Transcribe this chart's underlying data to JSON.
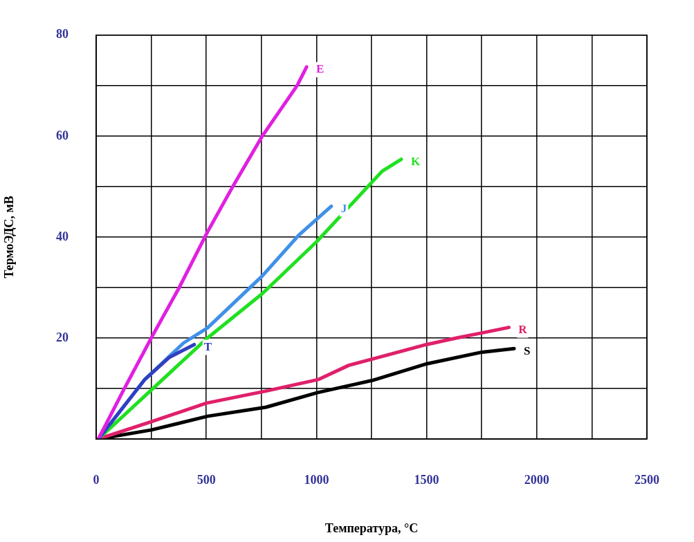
{
  "chart_data": {
    "type": "line",
    "xlabel": "Температура, °C",
    "ylabel": "ТермоЭДС, мВ",
    "xlim": [
      0,
      2500
    ],
    "ylim": [
      0,
      80
    ],
    "xticks": [
      0,
      {
        "value": 250,
        "label": null
      },
      500,
      {
        "value": 750,
        "label": null
      },
      1000,
      {
        "value": 1250,
        "label": null
      },
      1500,
      {
        "value": 1750,
        "label": null
      },
      2000,
      {
        "value": 2250,
        "label": null
      },
      2500
    ],
    "yticks": [
      {
        "value": 0,
        "label": null
      },
      {
        "value": 10,
        "label": null
      },
      20,
      {
        "value": 30,
        "label": null
      },
      40,
      {
        "value": 50,
        "label": null
      },
      60,
      {
        "value": 70,
        "label": null
      },
      80
    ],
    "grid": true,
    "legend": false,
    "marker": "none",
    "line_style": "solid",
    "series": [
      {
        "name": "E",
        "color": "#e020e0",
        "x": [
          10,
          128,
          250,
          377,
          505,
          620,
          754,
          912,
          955
        ],
        "values": [
          0,
          10,
          20,
          30,
          41,
          50,
          60,
          70,
          73.7
        ]
      },
      {
        "name": "T",
        "color": "#3040c0",
        "x": [
          10,
          221,
          333,
          445
        ],
        "values": [
          0,
          11.8,
          16.2,
          18.7
        ]
      },
      {
        "name": "J",
        "color": "#4090e8",
        "x": [
          10,
          221,
          396,
          505,
          754,
          918,
          1067
        ],
        "values": [
          0,
          11.8,
          19,
          22,
          32.3,
          40.3,
          46.1
        ]
      },
      {
        "name": "K",
        "color": "#20e020",
        "x": [
          10,
          505,
          754,
          1001,
          1297,
          1385
        ],
        "values": [
          0,
          20,
          28.8,
          39.1,
          53,
          55.4
        ]
      },
      {
        "name": "R",
        "color": "#e0206a",
        "x": [
          10,
          249,
          500,
          771,
          1010,
          1147,
          1259,
          1498,
          1634,
          1750,
          1873
        ],
        "values": [
          0,
          3.4,
          7.1,
          9.5,
          11.8,
          14.6,
          15.9,
          18.7,
          20,
          21,
          22.1
        ]
      },
      {
        "name": "S",
        "color": "#000000",
        "x": [
          10,
          251,
          505,
          771,
          1005,
          1253,
          1501,
          1751,
          1897
        ],
        "values": [
          0,
          1.8,
          4.5,
          6.3,
          9.2,
          11.6,
          14.9,
          17.2,
          17.9
        ]
      }
    ]
  }
}
